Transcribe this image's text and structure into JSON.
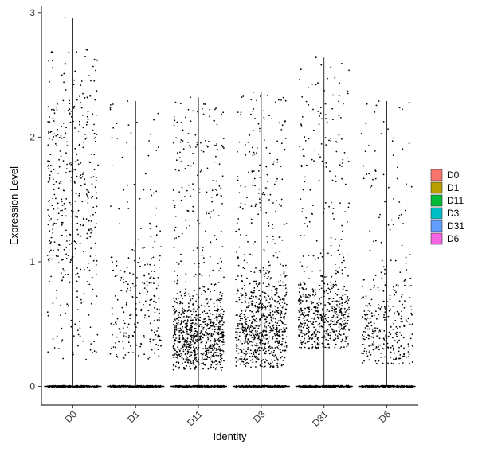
{
  "chart_data": {
    "type": "violin-jitter",
    "title": "",
    "xlabel": "Identity",
    "ylabel": "Expression Level",
    "ylim": [
      -0.15,
      3.05
    ],
    "yticks": [
      0,
      1,
      2,
      3
    ],
    "grid": false,
    "legend_position": "right",
    "categories": [
      "D0",
      "D1",
      "D11",
      "D3",
      "D31",
      "D6"
    ],
    "series": [
      {
        "name": "D0",
        "color": "#F8766D",
        "max": 2.96,
        "n_expr": 430,
        "expr_min": 0.2,
        "expr_max": 2.71,
        "mode": 1.5,
        "spread": 0.9
      },
      {
        "name": "D1",
        "color": "#B79F00",
        "max": 2.29,
        "n_expr": 260,
        "expr_min": 0.22,
        "expr_max": 2.28,
        "mode": 0.6,
        "spread": 0.5
      },
      {
        "name": "D11",
        "color": "#00BA38",
        "max": 2.32,
        "n_expr": 900,
        "expr_min": 0.13,
        "expr_max": 2.3,
        "mode": 0.4,
        "spread": 0.3
      },
      {
        "name": "D3",
        "color": "#00BFC4",
        "max": 2.36,
        "n_expr": 850,
        "expr_min": 0.15,
        "expr_max": 2.35,
        "mode": 0.45,
        "spread": 0.35
      },
      {
        "name": "D31",
        "color": "#619CFF",
        "max": 2.64,
        "n_expr": 650,
        "expr_min": 0.3,
        "expr_max": 2.63,
        "mode": 0.55,
        "spread": 0.3
      },
      {
        "name": "D6",
        "color": "#F564E3",
        "max": 2.29,
        "n_expr": 330,
        "expr_min": 0.18,
        "expr_max": 2.28,
        "mode": 0.45,
        "spread": 0.35
      }
    ]
  }
}
